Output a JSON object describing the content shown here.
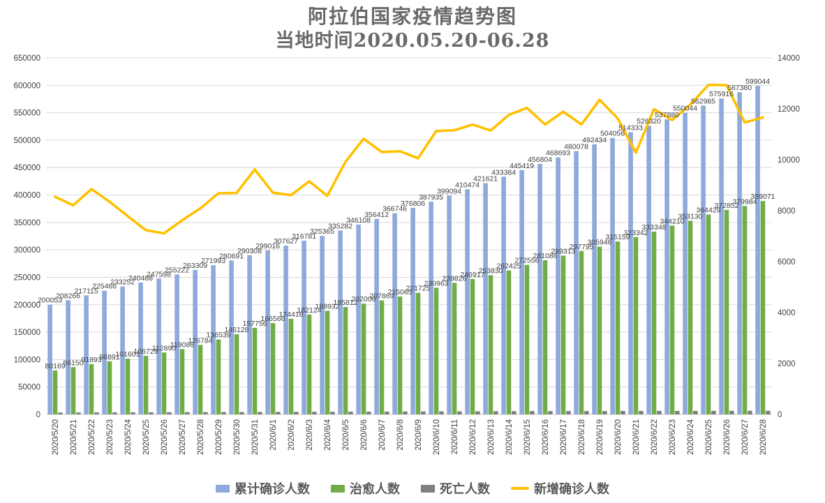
{
  "title": "阿拉伯国家疫情趋势图",
  "subtitle": "当地时间2020.05.20-06.28",
  "colors": {
    "cumulative": "#8EA9DB",
    "cured": "#70AD47",
    "deaths": "#7F7F7F",
    "new_confirmed": "#FFC000",
    "grid": "#D9D9D9",
    "axis_line": "#C9C9C9",
    "axis_text": "#404040",
    "label_text": "#404040"
  },
  "legend": {
    "items": [
      {
        "label": "累计确诊人数",
        "marker": "square",
        "color_key": "cumulative"
      },
      {
        "label": "治愈人数",
        "marker": "square",
        "color_key": "cured"
      },
      {
        "label": "死亡人数",
        "marker": "square",
        "color_key": "deaths"
      },
      {
        "label": "新增确诊人数",
        "marker": "line",
        "color_key": "new_confirmed"
      }
    ]
  },
  "chart_data": {
    "type": "bar",
    "subtype": "grouped bars + line (combo, dual axis)",
    "title": "阿拉伯国家疫情趋势图",
    "subtitle": "当地时间2020.05.20-06.28",
    "grid": true,
    "legend_position": "bottom",
    "categories": [
      "2020/5/20",
      "2020/5/21",
      "2020/5/22",
      "2020/5/23",
      "2020/5/24",
      "2020/5/25",
      "2020/5/26",
      "2020/5/27",
      "2020/5/28",
      "2020/5/29",
      "2020/5/30",
      "2020/5/31",
      "2020/6/1",
      "2020/6/2",
      "2020/6/3",
      "2020/6/4",
      "2020/6/5",
      "2020/6/6",
      "2020/6/7",
      "2020/6/8",
      "2020/6/9",
      "2020/6/10",
      "2020/6/11",
      "2020/6/12",
      "2020/6/13",
      "2020/6/14",
      "2020/6/15",
      "2020/6/16",
      "2020/6/17",
      "2020/6/18",
      "2020/6/19",
      "2020/6/20",
      "2020/6/21",
      "2020/6/22",
      "2020/6/23",
      "2020/6/24",
      "2020/6/25",
      "2020/6/26",
      "2020/6/27",
      "2020/6/28"
    ],
    "axes": {
      "left": {
        "min": 0,
        "max": 650000,
        "step": 50000
      },
      "right": {
        "min": 0,
        "max": 14000,
        "step": 2000
      }
    },
    "series": [
      {
        "name": "累计确诊人数",
        "type": "bar",
        "axis": "left",
        "color_key": "cumulative",
        "data_labels": true,
        "values": [
          200053,
          208266,
          217115,
          225466,
          233252,
          240488,
          247598,
          255222,
          263309,
          271993,
          280691,
          290308,
          299016,
          307627,
          316781,
          325365,
          335282,
          346108,
          356412,
          366746,
          376806,
          387935,
          399094,
          410474,
          421621,
          433384,
          445419,
          456804,
          468693,
          480078,
          492434,
          504056,
          514333,
          526320,
          537880,
          550044,
          562985,
          575916,
          587380,
          599044
        ]
      },
      {
        "name": "治愈人数",
        "type": "bar",
        "axis": "left",
        "color_key": "cured",
        "data_labels": true,
        "values": [
          80169,
          86150,
          91893,
          96891,
          101601,
          106729,
          112890,
          119086,
          126784,
          136539,
          146128,
          157756,
          166566,
          174416,
          182124,
          188932,
          195812,
          202006,
          207869,
          215065,
          221725,
          230963,
          239826,
          246917,
          253830,
          262425,
          272556,
          281086,
          289313,
          297795,
          305946,
          315159,
          323342,
          333348,
          344210,
          353130,
          364429,
          372852,
          379984,
          389071
        ]
      },
      {
        "name": "死亡人数",
        "type": "bar",
        "axis": "left",
        "color_key": "deaths",
        "data_labels": false,
        "values_estimated": true,
        "values": [
          3400,
          3500,
          3600,
          3700,
          3800,
          3900,
          4000,
          4100,
          4200,
          4300,
          4400,
          4500,
          4600,
          4700,
          4800,
          4900,
          5000,
          5100,
          5200,
          5300,
          5400,
          5500,
          5600,
          5700,
          5800,
          5900,
          6000,
          6050,
          6100,
          6150,
          6200,
          6250,
          6300,
          6350,
          6400,
          6450,
          6500,
          6550,
          6600,
          6650
        ]
      },
      {
        "name": "新增确诊人数",
        "type": "line",
        "axis": "right",
        "color_key": "new_confirmed",
        "data_labels": false,
        "values_estimated": true,
        "values": [
          8540,
          8213,
          8849,
          8351,
          7786,
          7236,
          7110,
          7624,
          8087,
          8684,
          8698,
          9617,
          8708,
          8611,
          9154,
          8584,
          9917,
          10826,
          10304,
          10334,
          10060,
          11129,
          11159,
          11380,
          11147,
          11763,
          12035,
          11385,
          11889,
          11385,
          12356,
          11622,
          10277,
          11987,
          11560,
          12164,
          12941,
          12931,
          11464,
          11664
        ]
      }
    ]
  }
}
